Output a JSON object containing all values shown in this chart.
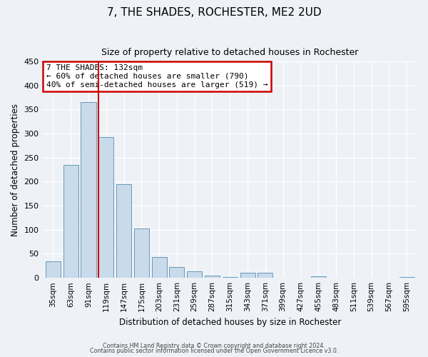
{
  "title": "7, THE SHADES, ROCHESTER, ME2 2UD",
  "subtitle": "Size of property relative to detached houses in Rochester",
  "xlabel": "Distribution of detached houses by size in Rochester",
  "ylabel": "Number of detached properties",
  "bar_color": "#c9daea",
  "bar_edge_color": "#6699bb",
  "background_color": "#eef2f7",
  "categories": [
    "35sqm",
    "63sqm",
    "91sqm",
    "119sqm",
    "147sqm",
    "175sqm",
    "203sqm",
    "231sqm",
    "259sqm",
    "287sqm",
    "315sqm",
    "343sqm",
    "371sqm",
    "399sqm",
    "427sqm",
    "455sqm",
    "483sqm",
    "511sqm",
    "539sqm",
    "567sqm",
    "595sqm"
  ],
  "values": [
    35,
    235,
    365,
    293,
    195,
    103,
    44,
    22,
    13,
    5,
    2,
    10,
    10,
    0,
    0,
    3,
    0,
    0,
    0,
    0,
    2
  ],
  "ylim": [
    0,
    450
  ],
  "yticks": [
    0,
    50,
    100,
    150,
    200,
    250,
    300,
    350,
    400,
    450
  ],
  "vline_index": 3,
  "vline_color": "#cc0000",
  "annotation_title": "7 THE SHADES: 132sqm",
  "annotation_line1": "← 60% of detached houses are smaller (790)",
  "annotation_line2": "40% of semi-detached houses are larger (519) →",
  "annotation_box_color": "#ffffff",
  "annotation_box_edge": "#cc0000",
  "footer1": "Contains HM Land Registry data © Crown copyright and database right 2024.",
  "footer2": "Contains public sector information licensed under the Open Government Licence v3.0."
}
